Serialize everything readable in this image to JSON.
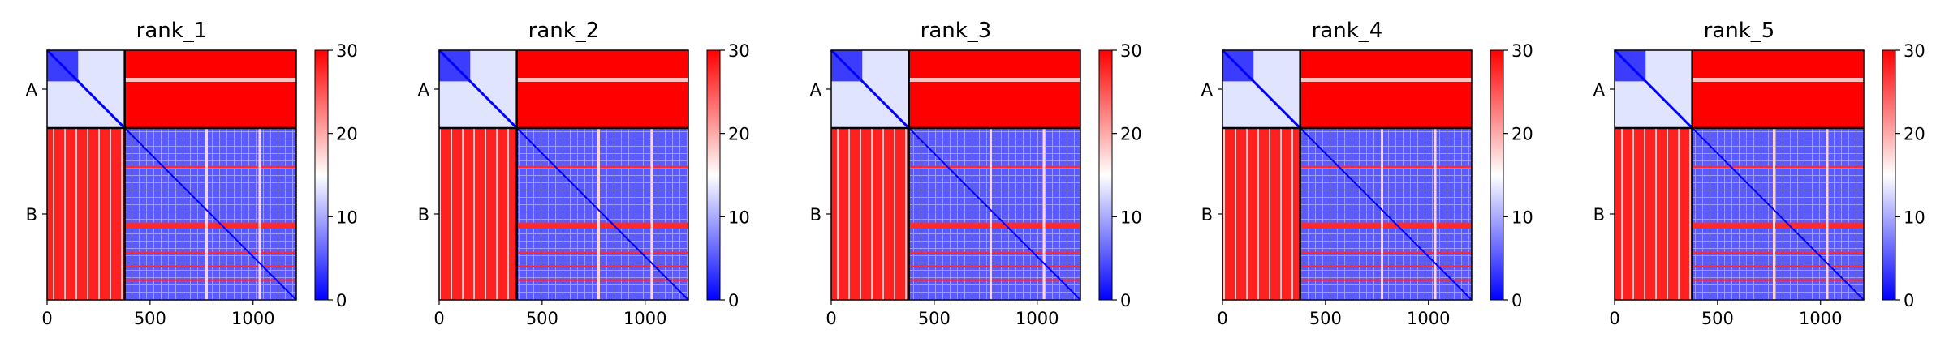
{
  "chart_data": [
    {
      "type": "heatmap",
      "title": "rank_1",
      "xlim": [
        0,
        1210
      ],
      "xticks": [
        0,
        500,
        1000
      ],
      "row_tick_labels": [
        "A",
        "B"
      ],
      "chain_boundary": 377,
      "colorbar": {
        "range": [
          0,
          30
        ],
        "ticks": [
          0,
          10,
          20,
          30
        ],
        "colors": [
          "#0000ff",
          "#ffffff",
          "#ff0000"
        ]
      }
    },
    {
      "type": "heatmap",
      "title": "rank_2",
      "xlim": [
        0,
        1210
      ],
      "xticks": [
        0,
        500,
        1000
      ],
      "row_tick_labels": [
        "A",
        "B"
      ],
      "chain_boundary": 377,
      "colorbar": {
        "range": [
          0,
          30
        ],
        "ticks": [
          0,
          10,
          20,
          30
        ],
        "colors": [
          "#0000ff",
          "#ffffff",
          "#ff0000"
        ]
      }
    },
    {
      "type": "heatmap",
      "title": "rank_3",
      "xlim": [
        0,
        1210
      ],
      "xticks": [
        0,
        500,
        1000
      ],
      "row_tick_labels": [
        "A",
        "B"
      ],
      "chain_boundary": 377,
      "colorbar": {
        "range": [
          0,
          30
        ],
        "ticks": [
          0,
          10,
          20,
          30
        ],
        "colors": [
          "#0000ff",
          "#ffffff",
          "#ff0000"
        ]
      }
    },
    {
      "type": "heatmap",
      "title": "rank_4",
      "xlim": [
        0,
        1210
      ],
      "xticks": [
        0,
        500,
        1000
      ],
      "row_tick_labels": [
        "A",
        "B"
      ],
      "chain_boundary": 377,
      "colorbar": {
        "range": [
          0,
          30
        ],
        "ticks": [
          0,
          10,
          20,
          30
        ],
        "colors": [
          "#0000ff",
          "#ffffff",
          "#ff0000"
        ]
      }
    },
    {
      "type": "heatmap",
      "title": "rank_5",
      "xlim": [
        0,
        1210
      ],
      "xticks": [
        0,
        500,
        1000
      ],
      "row_tick_labels": [
        "A",
        "B"
      ],
      "chain_boundary": 377,
      "colorbar": {
        "range": [
          0,
          30
        ],
        "ticks": [
          0,
          10,
          20,
          30
        ],
        "colors": [
          "#0000ff",
          "#ffffff",
          "#ff0000"
        ]
      }
    }
  ]
}
